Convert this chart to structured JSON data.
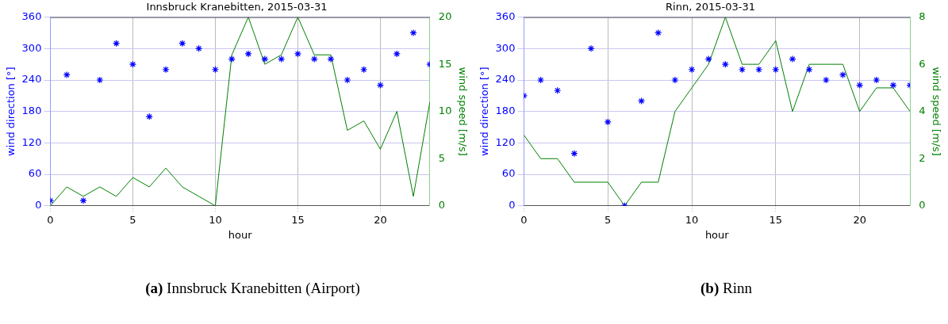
{
  "chart_data": [
    {
      "type": "scatter",
      "title": "Innsbruck Kranebitten, 2015-03-31",
      "xlabel": "hour",
      "ylabel": "wind direction [°]",
      "y2label": "wind speed [m/s]",
      "annotations": [
        "(a) Innsbruck Kranebitten (Airport)"
      ],
      "x": [
        0,
        1,
        2,
        3,
        4,
        5,
        6,
        7,
        8,
        9,
        10,
        11,
        12,
        13,
        14,
        15,
        16,
        17,
        18,
        19,
        20,
        21,
        22,
        23
      ],
      "series": [
        {
          "color": "#0000ff",
          "marker": "cross",
          "values": [
            10,
            250,
            10,
            240,
            310,
            270,
            170,
            260,
            310,
            300,
            260,
            280,
            290,
            280,
            280,
            290,
            280,
            280,
            240,
            260,
            230,
            290,
            330,
            270
          ]
        },
        {
          "type": "line",
          "axis": "y2",
          "color": "#008000",
          "marker": "none",
          "values": [
            0,
            2,
            1,
            2,
            1,
            3,
            2,
            4,
            2,
            1,
            0,
            16,
            20,
            15,
            16,
            20,
            16,
            16,
            8,
            9,
            6,
            10,
            1,
            11
          ]
        }
      ],
      "xlim": [
        0,
        23
      ],
      "xticks": [
        0,
        5,
        10,
        15,
        20
      ],
      "ylim": [
        0,
        360
      ],
      "yticks": [
        0,
        60,
        120,
        180,
        240,
        300,
        360
      ],
      "y2lim": [
        0,
        20
      ],
      "y2ticks": [
        0,
        5,
        10,
        15,
        20
      ],
      "grid": true,
      "line_style": "solid"
    },
    {
      "type": "scatter",
      "title": "Rinn, 2015-03-31",
      "xlabel": "hour",
      "ylabel": "wind direction [°]",
      "y2label": "wind speed [m/s]",
      "annotations": [
        "(b) Rinn"
      ],
      "x": [
        0,
        1,
        2,
        3,
        4,
        5,
        6,
        7,
        8,
        9,
        10,
        11,
        12,
        13,
        14,
        15,
        16,
        17,
        18,
        19,
        20,
        21,
        22,
        23
      ],
      "series": [
        {
          "color": "#0000ff",
          "marker": "cross",
          "values": [
            210,
            240,
            220,
            100,
            300,
            160,
            0,
            200,
            330,
            240,
            260,
            280,
            270,
            260,
            260,
            260,
            280,
            260,
            240,
            250,
            230,
            240,
            230,
            230
          ]
        },
        {
          "type": "line",
          "axis": "y2",
          "color": "#008000",
          "marker": "none",
          "values": [
            3,
            2,
            2,
            1,
            1,
            1,
            0,
            1,
            1,
            4,
            5,
            6,
            8,
            6,
            6,
            7,
            4,
            6,
            6,
            6,
            4,
            5,
            5,
            4
          ]
        }
      ],
      "xlim": [
        0,
        23
      ],
      "xticks": [
        0,
        5,
        10,
        15,
        20
      ],
      "ylim": [
        0,
        360
      ],
      "yticks": [
        0,
        60,
        120,
        180,
        240,
        300,
        360
      ],
      "y2lim": [
        0,
        8
      ],
      "y2ticks": [
        0,
        2,
        4,
        6,
        8
      ],
      "grid": true,
      "line_style": "solid"
    }
  ]
}
